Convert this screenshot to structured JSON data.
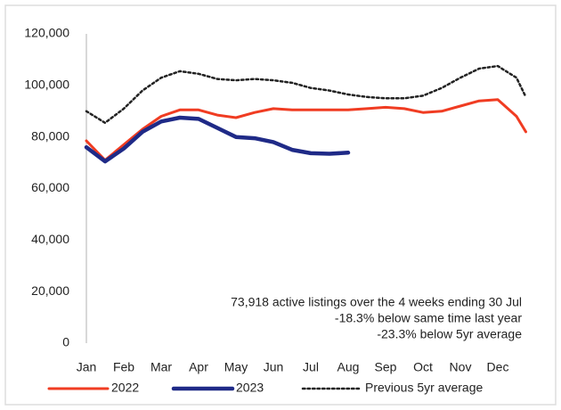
{
  "chart_data": {
    "type": "line",
    "x": [
      0,
      0.5,
      1,
      1.5,
      2,
      2.5,
      3,
      3.5,
      4,
      4.5,
      5,
      5.5,
      6,
      6.5,
      7,
      7.5,
      8,
      8.5,
      9,
      9.5,
      10,
      10.5,
      11,
      11.5,
      11.75
    ],
    "series": [
      {
        "name": "2022",
        "color": "#f03c22",
        "dash": "solid",
        "values": [
          78500,
          71000,
          77000,
          83000,
          88000,
          90500,
          90500,
          88500,
          87500,
          89500,
          91000,
          90500,
          90500,
          90500,
          90500,
          91000,
          91500,
          91000,
          89500,
          90000,
          92000,
          94000,
          94500,
          88000,
          82000
        ]
      },
      {
        "name": "2023",
        "color": "#1f2a87",
        "dash": "solid",
        "values": [
          76000,
          70500,
          75500,
          82000,
          86000,
          87500,
          87000,
          83500,
          80000,
          79500,
          78000,
          75000,
          73700,
          73500,
          73900,
          null,
          null,
          null,
          null,
          null,
          null,
          null,
          null,
          null,
          null
        ]
      },
      {
        "name": "Previous 5yr average",
        "color": "#222222",
        "dash": "dotted",
        "values": [
          90000,
          85500,
          91000,
          98000,
          103000,
          105500,
          104500,
          102500,
          102000,
          102500,
          102000,
          101000,
          99000,
          98000,
          96500,
          95500,
          95000,
          95000,
          96000,
          99000,
          103000,
          106500,
          107500,
          103000,
          95500
        ]
      }
    ],
    "xlim": [
      0,
      12
    ],
    "xticks": [
      {
        "value": 0,
        "label": "Jan"
      },
      {
        "value": 1,
        "label": "Feb"
      },
      {
        "value": 2,
        "label": "Mar"
      },
      {
        "value": 3,
        "label": "Apr"
      },
      {
        "value": 4,
        "label": "May"
      },
      {
        "value": 5,
        "label": "Jun"
      },
      {
        "value": 6,
        "label": "Jul"
      },
      {
        "value": 7,
        "label": "Aug"
      },
      {
        "value": 8,
        "label": "Sep"
      },
      {
        "value": 9,
        "label": "Oct"
      },
      {
        "value": 10,
        "label": "Nov"
      },
      {
        "value": 11,
        "label": "Dec"
      }
    ],
    "ylim": [
      0,
      120000
    ],
    "yticks": [
      0,
      {
        "value": 20000,
        "label": "20,000"
      },
      {
        "value": 40000,
        "label": "40,000"
      },
      {
        "value": 60000,
        "label": "60,000"
      },
      {
        "value": 80000,
        "label": "80,000"
      },
      {
        "value": 100000,
        "label": "100,000"
      },
      {
        "value": 120000,
        "label": "120,000"
      }
    ],
    "annotations": [
      "73,918 active listings over the 4 weeks ending 30 Jul",
      "-18.3% below same time last year",
      "-23.3% below 5yr average"
    ],
    "legend": "bottom"
  }
}
